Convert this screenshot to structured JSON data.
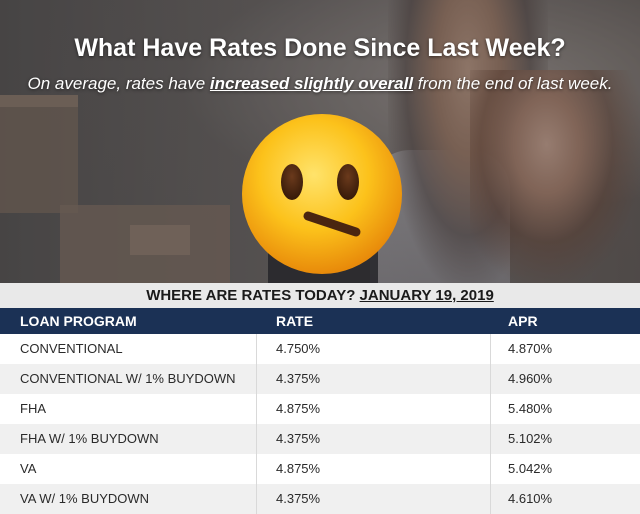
{
  "header": {
    "title": "What Have Rates Done Since Last Week?",
    "subtitle_pre": "On average, rates have ",
    "subtitle_emphasis": "increased slightly overall",
    "subtitle_post": " from the end of last week."
  },
  "emoji": {
    "icon": "face-with-diagonal-mouth-icon"
  },
  "rates": {
    "heading_label": "WHERE ARE RATES TODAY?",
    "date": "JANUARY 19, 2019",
    "columns": [
      "LOAN PROGRAM",
      "RATE",
      "APR"
    ],
    "rows": [
      {
        "program": "CONVENTIONAL",
        "rate": "4.750%",
        "apr": "4.870%"
      },
      {
        "program": "CONVENTIONAL W/ 1% BUYDOWN",
        "rate": "4.375%",
        "apr": "4.960%"
      },
      {
        "program": "FHA",
        "rate": "4.875%",
        "apr": "5.480%"
      },
      {
        "program": "FHA W/ 1% BUYDOWN",
        "rate": "4.375%",
        "apr": "5.102%"
      },
      {
        "program": "VA",
        "rate": "4.875%",
        "apr": "5.042%"
      },
      {
        "program": "VA W/ 1% BUYDOWN",
        "rate": "4.375%",
        "apr": "4.610%"
      }
    ]
  }
}
